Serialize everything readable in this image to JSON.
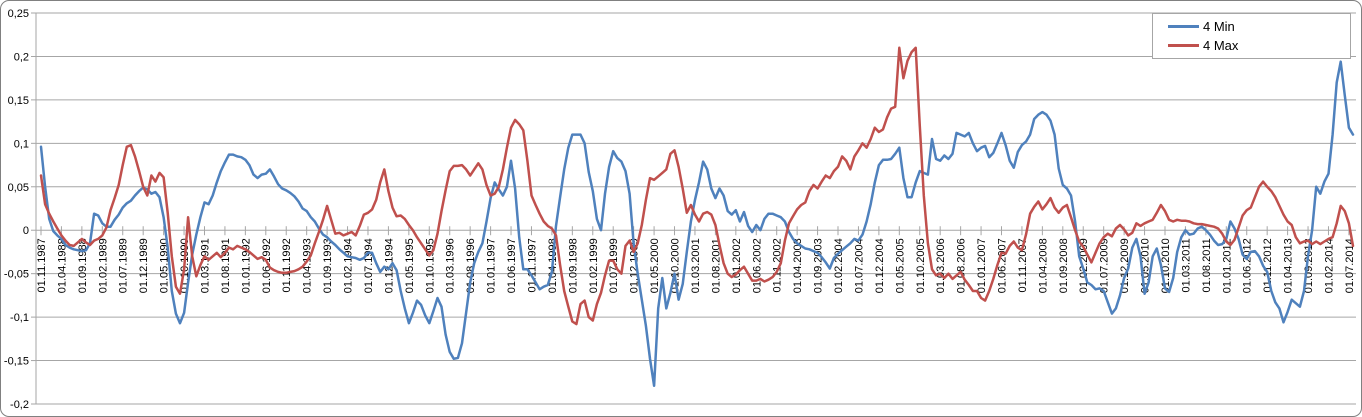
{
  "chart_data": {
    "type": "line",
    "title": "",
    "grid": true,
    "y_axis": {
      "min": -0.2,
      "max": 0.25,
      "step": 0.05,
      "decimal_separator": "comma",
      "tick_labels": [
        "0,25",
        "0,2",
        "0,15",
        "0,1",
        "0,05",
        "0",
        "-0,05",
        "-0,1",
        "-0,15",
        "-0,2"
      ]
    },
    "x_axis": {
      "first_point": "01.11.1987",
      "points_per_label": 5,
      "labels": [
        "01.11.1987",
        "01.04.1988",
        "01.09.1988",
        "01.02.1989",
        "01.07.1989",
        "01.12.1989",
        "01.05.1990",
        "01.10.1990",
        "01.03.1991",
        "01.08.1991",
        "01.01.1992",
        "01.06.1992",
        "01.11.1992",
        "01.04.1993",
        "01.09.1993",
        "01.02.1994",
        "01.07.1994",
        "01.12.1994",
        "01.05.1995",
        "01.10.1995",
        "01.03.1996",
        "01.08.1996",
        "01.01.1997",
        "01.06.1997",
        "01.11.1997",
        "01.04.1998",
        "01.09.1998",
        "01.02.1999",
        "01.07.1999",
        "01.12.1999",
        "01.05.2000",
        "01.10.2000",
        "01.03.2001",
        "01.08.2001",
        "01.01.2002",
        "01.06.2002",
        "01.11.2002",
        "01.04.2003",
        "01.09.2003",
        "01.02.2004",
        "01.07.2004",
        "01.12.2004",
        "01.05.2005",
        "01.10.2005",
        "01.03.2006",
        "01.08.2006",
        "01.01.2007",
        "01.06.2007",
        "01.11.2007",
        "01.04.2008",
        "01.09.2008",
        "01.02.2009",
        "01.07.2009",
        "01.12.2009",
        "01.05.2010",
        "01.10.2010",
        "01.03.2011",
        "01.08.2011",
        "01.01.2012",
        "01.06.2012",
        "01.11.2012",
        "01.04.2013",
        "01.09.2013",
        "01.02.2014",
        "01.07.2014"
      ]
    },
    "legend": {
      "position": "top-right",
      "entries": [
        {
          "label": "4 Min",
          "color": "#4F81BD"
        },
        {
          "label": "4 Max",
          "color": "#C0504D"
        }
      ]
    },
    "series": [
      {
        "name": "4 Min",
        "color": "#4F81BD",
        "values": [
          0.096,
          0.05,
          0.013,
          -0.001,
          -0.006,
          -0.01,
          -0.017,
          -0.02,
          -0.022,
          -0.023,
          -0.024,
          -0.023,
          -0.015,
          0.019,
          0.017,
          0.008,
          0.004,
          0.004,
          0.012,
          0.018,
          0.026,
          0.031,
          0.034,
          0.04,
          0.045,
          0.049,
          0.047,
          0.042,
          0.044,
          0.038,
          0.015,
          -0.02,
          -0.07,
          -0.096,
          -0.107,
          -0.095,
          -0.06,
          -0.028,
          -0.005,
          0.015,
          0.032,
          0.03,
          0.04,
          0.055,
          0.068,
          0.078,
          0.087,
          0.087,
          0.085,
          0.084,
          0.081,
          0.075,
          0.064,
          0.06,
          0.064,
          0.065,
          0.07,
          0.062,
          0.053,
          0.048,
          0.046,
          0.043,
          0.039,
          0.033,
          0.025,
          0.022,
          0.015,
          0.01,
          0.002,
          -0.005,
          -0.008,
          -0.013,
          -0.017,
          -0.022,
          -0.026,
          -0.03,
          -0.031,
          -0.032,
          -0.034,
          -0.032,
          -0.026,
          -0.026,
          -0.038,
          -0.048,
          -0.042,
          -0.045,
          -0.038,
          -0.046,
          -0.07,
          -0.09,
          -0.107,
          -0.095,
          -0.081,
          -0.086,
          -0.098,
          -0.107,
          -0.093,
          -0.078,
          -0.088,
          -0.12,
          -0.14,
          -0.148,
          -0.147,
          -0.13,
          -0.095,
          -0.06,
          -0.038,
          -0.025,
          -0.015,
          0.01,
          0.037,
          0.055,
          0.047,
          0.04,
          0.05,
          0.08,
          0.048,
          -0.008,
          -0.045,
          -0.045,
          -0.052,
          -0.06,
          -0.068,
          -0.065,
          -0.063,
          -0.048,
          0.005,
          0.038,
          0.07,
          0.095,
          0.11,
          0.11,
          0.11,
          0.1,
          0.067,
          0.045,
          0.013,
          0,
          0.042,
          0.073,
          0.091,
          0.083,
          0.079,
          0.068,
          0.042,
          -0.015,
          -0.05,
          -0.08,
          -0.11,
          -0.148,
          -0.179,
          -0.09,
          -0.055,
          -0.09,
          -0.072,
          -0.05,
          -0.08,
          -0.062,
          -0.025,
          0.01,
          0.035,
          0.055,
          0.079,
          0.07,
          0.048,
          0.037,
          0.048,
          0.04,
          0.022,
          0.018,
          0.023,
          0.01,
          0.021,
          0.005,
          -0.002,
          0.006,
          0,
          0.013,
          0.019,
          0.019,
          0.017,
          0.015,
          0.01,
          -0.002,
          -0.01,
          -0.015,
          -0.018,
          -0.021,
          -0.022,
          -0.024,
          -0.026,
          -0.031,
          -0.037,
          -0.044,
          -0.032,
          -0.027,
          -0.023,
          -0.019,
          -0.015,
          -0.01,
          -0.012,
          -0.005,
          0.01,
          0.03,
          0.055,
          0.075,
          0.081,
          0.081,
          0.082,
          0.088,
          0.095,
          0.06,
          0.038,
          0.038,
          0.055,
          0.068,
          0.066,
          0.064,
          0.105,
          0.082,
          0.08,
          0.086,
          0.082,
          0.088,
          0.112,
          0.11,
          0.108,
          0.112,
          0.1,
          0.091,
          0.095,
          0.097,
          0.084,
          0.089,
          0.1,
          0.112,
          0.098,
          0.08,
          0.072,
          0.09,
          0.098,
          0.102,
          0.11,
          0.128,
          0.133,
          0.136,
          0.133,
          0.126,
          0.11,
          0.071,
          0.052,
          0.048,
          0.04,
          0.01,
          -0.03,
          -0.044,
          -0.06,
          -0.063,
          -0.068,
          -0.067,
          -0.07,
          -0.083,
          -0.096,
          -0.09,
          -0.075,
          -0.055,
          -0.044,
          -0.02,
          -0.01,
          -0.03,
          -0.073,
          -0.06,
          -0.03,
          -0.021,
          -0.04,
          -0.067,
          -0.071,
          -0.055,
          -0.025,
          -0.008,
          0,
          -0.005,
          -0.004,
          0.002,
          0.004,
          0,
          -0.005,
          -0.012,
          -0.017,
          -0.016,
          -0.01,
          0.01,
          0.002,
          -0.01,
          -0.028,
          -0.033,
          -0.025,
          -0.024,
          -0.03,
          -0.041,
          -0.048,
          -0.07,
          -0.083,
          -0.09,
          -0.106,
          -0.094,
          -0.08,
          -0.084,
          -0.088,
          -0.07,
          -0.03,
          0,
          0.05,
          0.042,
          0.056,
          0.065,
          0.11,
          0.17,
          0.194,
          0.155,
          0.118,
          0.11
        ]
      },
      {
        "name": "4 Max",
        "color": "#C0504D",
        "values": [
          0.063,
          0.03,
          0.019,
          0.01,
          0.002,
          -0.006,
          -0.012,
          -0.017,
          -0.018,
          -0.014,
          -0.01,
          -0.014,
          -0.017,
          -0.012,
          -0.01,
          -0.006,
          0.003,
          0.023,
          0.037,
          0.052,
          0.075,
          0.096,
          0.098,
          0.085,
          0.068,
          0.05,
          0.04,
          0.063,
          0.056,
          0.066,
          0.061,
          0.02,
          -0.03,
          -0.065,
          -0.073,
          -0.045,
          0.015,
          -0.03,
          -0.053,
          -0.04,
          -0.03,
          -0.034,
          -0.03,
          -0.026,
          -0.031,
          -0.026,
          -0.02,
          -0.022,
          -0.018,
          -0.02,
          -0.022,
          -0.025,
          -0.029,
          -0.033,
          -0.031,
          -0.034,
          -0.043,
          -0.046,
          -0.048,
          -0.049,
          -0.049,
          -0.048,
          -0.047,
          -0.045,
          -0.042,
          -0.036,
          -0.029,
          -0.015,
          -0.002,
          0.012,
          0.028,
          0.012,
          -0.004,
          -0.003,
          -0.006,
          -0.004,
          -0.002,
          -0.006,
          0.005,
          0.018,
          0.02,
          0.024,
          0.035,
          0.055,
          0.07,
          0.045,
          0.026,
          0.016,
          0.017,
          0.013,
          0.006,
          0,
          -0.008,
          -0.015,
          -0.022,
          -0.029,
          -0.023,
          -0.004,
          0.022,
          0.046,
          0.068,
          0.074,
          0.074,
          0.075,
          0.07,
          0.063,
          0.07,
          0.077,
          0.07,
          0.052,
          0.04,
          0.042,
          0.05,
          0.07,
          0.095,
          0.118,
          0.127,
          0.122,
          0.115,
          0.08,
          0.04,
          0.029,
          0.019,
          0.01,
          0.005,
          0.002,
          -0.006,
          -0.04,
          -0.07,
          -0.088,
          -0.105,
          -0.108,
          -0.085,
          -0.081,
          -0.1,
          -0.104,
          -0.085,
          -0.072,
          -0.052,
          -0.035,
          -0.035,
          -0.045,
          -0.05,
          -0.018,
          -0.012,
          -0.025,
          -0.015,
          0.006,
          0.035,
          0.06,
          0.058,
          0.062,
          0.066,
          0.07,
          0.088,
          0.092,
          0.073,
          0.048,
          0.02,
          0.029,
          0.018,
          0.01,
          0.019,
          0.021,
          0.018,
          0.006,
          -0.017,
          -0.038,
          -0.05,
          -0.054,
          -0.051,
          -0.046,
          -0.042,
          -0.05,
          -0.058,
          -0.058,
          -0.056,
          -0.059,
          -0.057,
          -0.054,
          -0.048,
          -0.038,
          -0.012,
          0.008,
          0.016,
          0.024,
          0.029,
          0.032,
          0.045,
          0.052,
          0.048,
          0.056,
          0.063,
          0.06,
          0.068,
          0.073,
          0.085,
          0.08,
          0.07,
          0.085,
          0.092,
          0.1,
          0.095,
          0.105,
          0.118,
          0.113,
          0.116,
          0.13,
          0.14,
          0.142,
          0.21,
          0.175,
          0.195,
          0.205,
          0.21,
          0.12,
          0.04,
          -0.015,
          -0.045,
          -0.052,
          -0.05,
          -0.055,
          -0.05,
          -0.056,
          -0.052,
          -0.048,
          -0.057,
          -0.063,
          -0.07,
          -0.07,
          -0.078,
          -0.081,
          -0.07,
          -0.056,
          -0.04,
          -0.026,
          -0.027,
          -0.018,
          -0.013,
          -0.02,
          -0.023,
          -0.005,
          0.019,
          0.027,
          0.033,
          0.024,
          0.03,
          0.037,
          0.026,
          0.02,
          0.026,
          0.029,
          0.015,
          0,
          -0.013,
          -0.019,
          -0.028,
          -0.037,
          -0.026,
          -0.015,
          -0.008,
          -0.004,
          -0.007,
          0.002,
          0.006,
          0.001,
          -0.006,
          -0.003,
          0.008,
          0.005,
          0.008,
          0.01,
          0.012,
          0.02,
          0.029,
          0.022,
          0.012,
          0.01,
          0.012,
          0.011,
          0.011,
          0.01,
          0.008,
          0.007,
          0.007,
          0.006,
          0.005,
          0.004,
          0.002,
          -0.004,
          -0.013,
          -0.017,
          -0.011,
          0.003,
          0.017,
          0.023,
          0.026,
          0.038,
          0.05,
          0.056,
          0.05,
          0.045,
          0.038,
          0.028,
          0.018,
          0.01,
          0.006,
          -0.008,
          -0.015,
          -0.013,
          -0.012,
          -0.016,
          -0.013,
          -0.016,
          -0.013,
          -0.01,
          -0.008,
          0.008,
          0.028,
          0.022,
          0.008,
          -0.018
        ]
      }
    ],
    "colors": {
      "series_min": "#4F81BD",
      "series_max": "#C0504D",
      "gridline": "#A6A6A6",
      "axis": "#A6A6A6",
      "text": "#000000",
      "background": "#FFFFFF",
      "border": "#808080"
    }
  }
}
